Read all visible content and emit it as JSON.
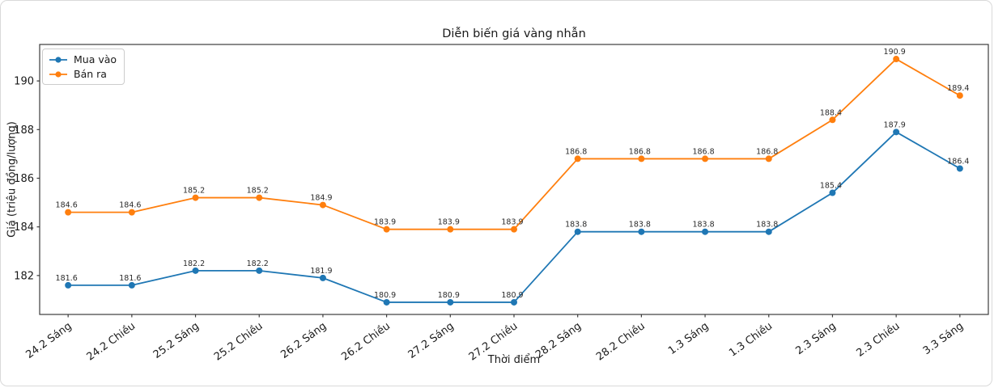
{
  "chart_data": {
    "type": "line",
    "title": "Diễn biến giá vàng nhẫn",
    "xlabel": "Thời điểm",
    "ylabel": "Giá (triệu đồng/lượng)",
    "categories": [
      "24.2 Sáng",
      "24.2 Chiều",
      "25.2 Sáng",
      "25.2 Chiều",
      "26.2 Sáng",
      "26.2 Chiều",
      "27.2 Sáng",
      "27.2 Chiều",
      "28.2 Sáng",
      "28.2 Chiều",
      "1.3 Sáng",
      "1.3 Chiều",
      "2.3 Sáng",
      "2.3 Chiều",
      "3.3 Sáng"
    ],
    "series": [
      {
        "name": "Mua vào",
        "color": "#1f77b4",
        "values": [
          181.6,
          181.6,
          182.2,
          182.2,
          181.9,
          180.9,
          180.9,
          180.9,
          183.8,
          183.8,
          183.8,
          183.8,
          185.4,
          187.9,
          186.4
        ]
      },
      {
        "name": "Bán ra",
        "color": "#ff7f0e",
        "values": [
          184.6,
          184.6,
          185.2,
          185.2,
          184.9,
          183.9,
          183.9,
          183.9,
          186.8,
          186.8,
          186.8,
          186.8,
          188.4,
          190.9,
          189.4
        ]
      }
    ],
    "yticks": [
      182,
      184,
      186,
      188,
      190
    ],
    "ylim": [
      180.4,
      191.5
    ],
    "grid": false,
    "legend_position": "upper left",
    "marker": "circle",
    "data_labels": true
  }
}
